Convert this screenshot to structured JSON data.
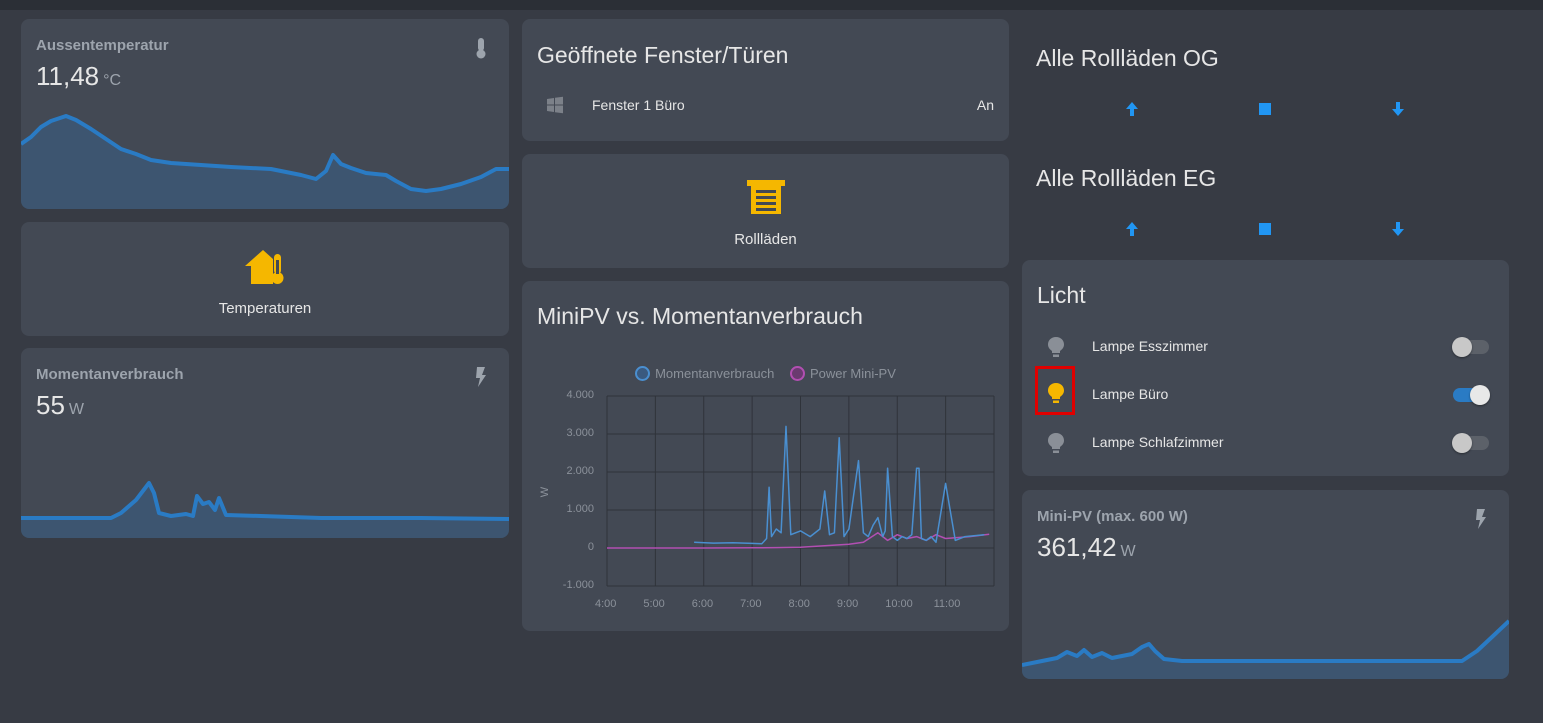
{
  "outside_temp": {
    "name": "Aussentemperatur",
    "value": "11,48",
    "unit": "°C",
    "icon": "thermometer-icon"
  },
  "temperatures_button": {
    "label": "Temperaturen",
    "icon": "home-thermometer-icon",
    "color": "#f5b700"
  },
  "power_usage": {
    "name": "Momentanverbrauch",
    "value": "55",
    "unit": "W",
    "icon": "flash-icon"
  },
  "open_windows": {
    "title": "Geöffnete Fenster/Türen",
    "rows": [
      {
        "label": "Fenster 1 Büro",
        "state": "An",
        "icon": "window-icon"
      }
    ]
  },
  "shutters_button": {
    "label": "Rollläden",
    "icon": "garage-door-icon",
    "color": "#f5b700"
  },
  "minipv_chart": {
    "title": "MiniPV vs. Momentanverbrauch",
    "legend": [
      "Momentanverbrauch",
      "Power Mini-PV"
    ]
  },
  "chart_data": {
    "type": "line",
    "title": "MiniPV vs. Momentanverbrauch",
    "xlabel": "",
    "ylabel": "W",
    "ylim": [
      -1000,
      4000
    ],
    "y_ticks": [
      "4.000",
      "3.000",
      "2.000",
      "1.000",
      "0",
      "-1.000"
    ],
    "x_ticks": [
      "4:00",
      "5:00",
      "6:00",
      "7:00",
      "8:00",
      "9:00",
      "10:00",
      "11:00"
    ],
    "series": [
      {
        "name": "Momentanverbrauch",
        "color": "#4a8fd0",
        "x": [
          5.8,
          6.2,
          6.6,
          7.0,
          7.2,
          7.3,
          7.35,
          7.4,
          7.5,
          7.6,
          7.7,
          7.8,
          8.0,
          8.2,
          8.4,
          8.5,
          8.6,
          8.7,
          8.8,
          8.9,
          9.0,
          9.2,
          9.3,
          9.4,
          9.5,
          9.6,
          9.7,
          9.75,
          9.8,
          9.9,
          10.0,
          10.1,
          10.2,
          10.3,
          10.4,
          10.45,
          10.5,
          10.6,
          10.7,
          10.8,
          11.0,
          11.2,
          11.4,
          11.8
        ],
        "values": [
          150,
          130,
          140,
          120,
          110,
          250,
          1600,
          300,
          500,
          400,
          3200,
          350,
          450,
          300,
          500,
          1500,
          350,
          400,
          2900,
          300,
          500,
          2300,
          400,
          300,
          600,
          800,
          300,
          450,
          2100,
          300,
          200,
          300,
          250,
          350,
          2100,
          2100,
          250,
          200,
          300,
          150,
          1700,
          200,
          300,
          350
        ]
      },
      {
        "name": "Power Mini-PV",
        "color": "#b24fb2",
        "x": [
          4.0,
          5.0,
          6.0,
          7.0,
          7.5,
          8.0,
          8.5,
          9.0,
          9.3,
          9.6,
          9.8,
          10.0,
          10.2,
          10.4,
          10.6,
          10.8,
          11.0,
          11.5,
          11.9
        ],
        "values": [
          0,
          0,
          0,
          5,
          10,
          20,
          60,
          100,
          150,
          400,
          200,
          350,
          250,
          300,
          200,
          350,
          250,
          300,
          360
        ]
      }
    ]
  },
  "covers_og": {
    "title": "Alle Rollläden OG",
    "buttons": [
      "arrow-up-icon",
      "stop-icon",
      "arrow-down-icon"
    ]
  },
  "covers_eg": {
    "title": "Alle Rollläden EG",
    "buttons": [
      "arrow-up-icon",
      "stop-icon",
      "arrow-down-icon"
    ]
  },
  "lights": {
    "title": "Licht",
    "rows": [
      {
        "label": "Lampe Esszimmer",
        "state": "off"
      },
      {
        "label": "Lampe Büro",
        "state": "on"
      },
      {
        "label": "Lampe Schlafzimmer",
        "state": "off"
      }
    ]
  },
  "minipv": {
    "name": "Mini-PV (max. 600 W)",
    "value": "361,42",
    "unit": "W",
    "icon": "flash-icon"
  },
  "colors": {
    "accent": "#2196f3",
    "lamp_on": "#f5b700",
    "lamp_off": "#8a8f97",
    "highlight": "#e00000"
  }
}
